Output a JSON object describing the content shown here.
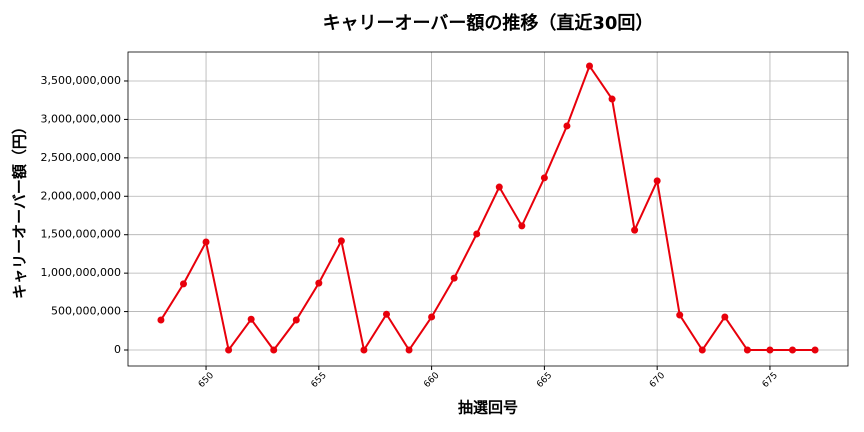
{
  "chart_data": {
    "type": "line",
    "title": "キャリーオーバー額の推移（直近30回）",
    "xlabel": "抽選回号",
    "ylabel": "キャリーオーバー額（円）",
    "x": [
      648,
      649,
      650,
      651,
      652,
      653,
      654,
      655,
      656,
      657,
      658,
      659,
      660,
      661,
      662,
      663,
      664,
      665,
      666,
      667,
      668,
      669,
      670,
      671,
      672,
      673,
      674,
      675,
      676,
      677
    ],
    "series": [
      {
        "color": "#e8000b",
        "values": [
          390000000,
          860000000,
          1405000000,
          0,
          400000000,
          0,
          390000000,
          870000000,
          1420000000,
          0,
          465000000,
          0,
          430000000,
          935000000,
          1510000000,
          2120000000,
          1615000000,
          2240000000,
          2915000000,
          3695000000,
          3265000000,
          1560000000,
          2200000000,
          455000000,
          0,
          430000000,
          0,
          0,
          0,
          0
        ]
      }
    ],
    "xlim": [
      646.54,
      678.46
    ],
    "ylim": [
      -208000000,
      3877000000
    ],
    "xticks": [
      650,
      655,
      660,
      665,
      670,
      675
    ],
    "yticks": [
      0,
      {
        "value": 500000000,
        "label": "500,000,000"
      },
      {
        "value": 1000000000,
        "label": "1,000,000,000"
      },
      {
        "value": 1500000000,
        "label": "1,500,000,000"
      },
      {
        "value": 2000000000,
        "label": "2,000,000,000"
      },
      {
        "value": 2500000000,
        "label": "2,500,000,000"
      },
      {
        "value": 3000000000,
        "label": "3,000,000,000"
      },
      {
        "value": 3500000000,
        "label": "3,500,000,000"
      }
    ],
    "grid": true
  }
}
